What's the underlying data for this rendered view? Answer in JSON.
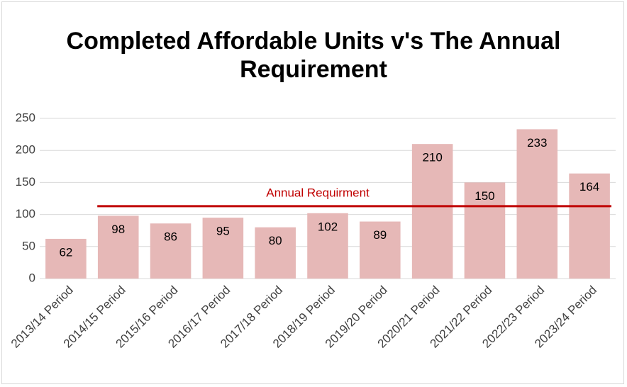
{
  "chart_data": {
    "type": "bar",
    "title": "Completed Affordable Units v's The Annual Requirement",
    "categories": [
      "2013/14 Period",
      "2014/15 Period",
      "2015/16 Period",
      "2016/17 Period",
      "2017/18 Period",
      "2018/19 Period",
      "2019/20 Period",
      "2020/21 Period",
      "2021/22 Period",
      "2022/23 Period",
      "2023/24 Period"
    ],
    "values": [
      62,
      98,
      86,
      95,
      80,
      102,
      89,
      210,
      150,
      233,
      164
    ],
    "color": "#e6b8b7",
    "ylim": [
      0,
      250
    ],
    "yticks": [
      0,
      50,
      100,
      150,
      200,
      250
    ],
    "grid": true,
    "reference_line": {
      "value": 113,
      "label": "Annual Requirment",
      "color": "#c00000"
    }
  }
}
